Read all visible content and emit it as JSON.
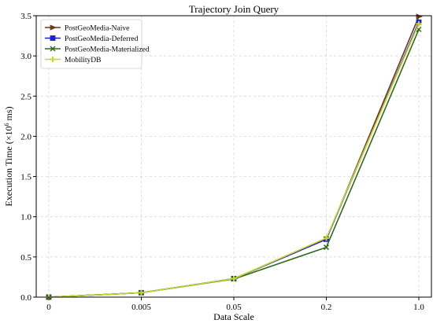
{
  "chart_data": {
    "type": "line",
    "title": "Trajectory Join Query",
    "xlabel": "Data Scale",
    "ylabel_prefix": "Execution Time (",
    "ylabel_mult": "×10",
    "ylabel_exp": "6",
    "ylabel_suffix": " ms)",
    "categories": [
      "0",
      "0.005",
      "0.05",
      "0.2",
      "1.0"
    ],
    "ylim": [
      0,
      3.5
    ],
    "yticks": [
      "0.0",
      "0.5",
      "1.0",
      "1.5",
      "2.0",
      "2.5",
      "3.0",
      "3.5"
    ],
    "grid": true,
    "legend_position": "top-left",
    "series": [
      {
        "name": "PostGeoMedia-Naive",
        "values": [
          0.0,
          0.055,
          0.23,
          0.72,
          3.49
        ],
        "color": "#6b3a1a",
        "marker": "triangle-right"
      },
      {
        "name": "PostGeoMedia-Deferred",
        "values": [
          0.0,
          0.055,
          0.23,
          0.72,
          3.42
        ],
        "color": "#1f1fd6",
        "marker": "square"
      },
      {
        "name": "PostGeoMedia-Materialized",
        "values": [
          0.0,
          0.055,
          0.225,
          0.62,
          3.33
        ],
        "color": "#2e6b1a",
        "marker": "x"
      },
      {
        "name": "MobilityDB",
        "values": [
          0.0,
          0.055,
          0.23,
          0.735,
          3.4
        ],
        "color": "#c8d82a",
        "marker": "plus"
      }
    ]
  }
}
